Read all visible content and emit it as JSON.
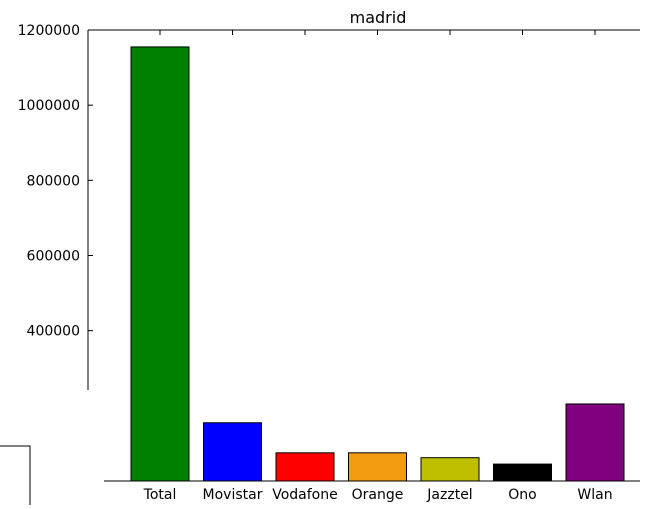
{
  "chart_data": {
    "type": "bar",
    "title": "madrid",
    "xlabel": "",
    "ylabel": "",
    "categories": [
      "Total",
      "Movistar",
      "Vodafone",
      "Orange",
      "Jazztel",
      "Ono",
      "Wlan"
    ],
    "values": [
      1155000,
      155000,
      75000,
      75000,
      62000,
      45000,
      205000
    ],
    "bar_colors": [
      "#008000",
      "#0000ff",
      "#ff0000",
      "#f39c12",
      "#bfbf00",
      "#000000",
      "#800080"
    ],
    "ylim": [
      0,
      1200000
    ],
    "yticks": [
      400000,
      600000,
      800000,
      1000000,
      1200000
    ],
    "ytick_labels": [
      "400000",
      "600000",
      "800000",
      "1000000",
      "1200000"
    ],
    "grid": false,
    "legend": "none"
  }
}
